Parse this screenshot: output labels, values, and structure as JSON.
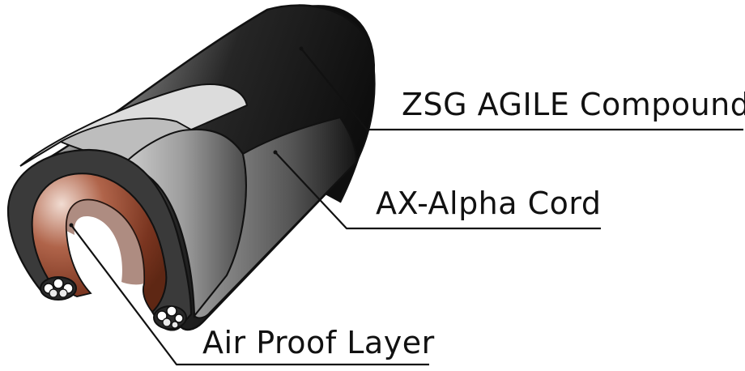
{
  "labels": {
    "compound": "ZSG AGILE Compound",
    "cord": "AX-Alpha Cord",
    "air_layer": "Air Proof Layer"
  },
  "colors": {
    "tread_dark": "#161616",
    "tread_mid": "#6a6a6a",
    "casing_grey": "#a8a8a8",
    "liner_brown": "#7a3520",
    "liner_brown_light": "#c98a72",
    "outline": "#111111",
    "line": "#111111"
  }
}
